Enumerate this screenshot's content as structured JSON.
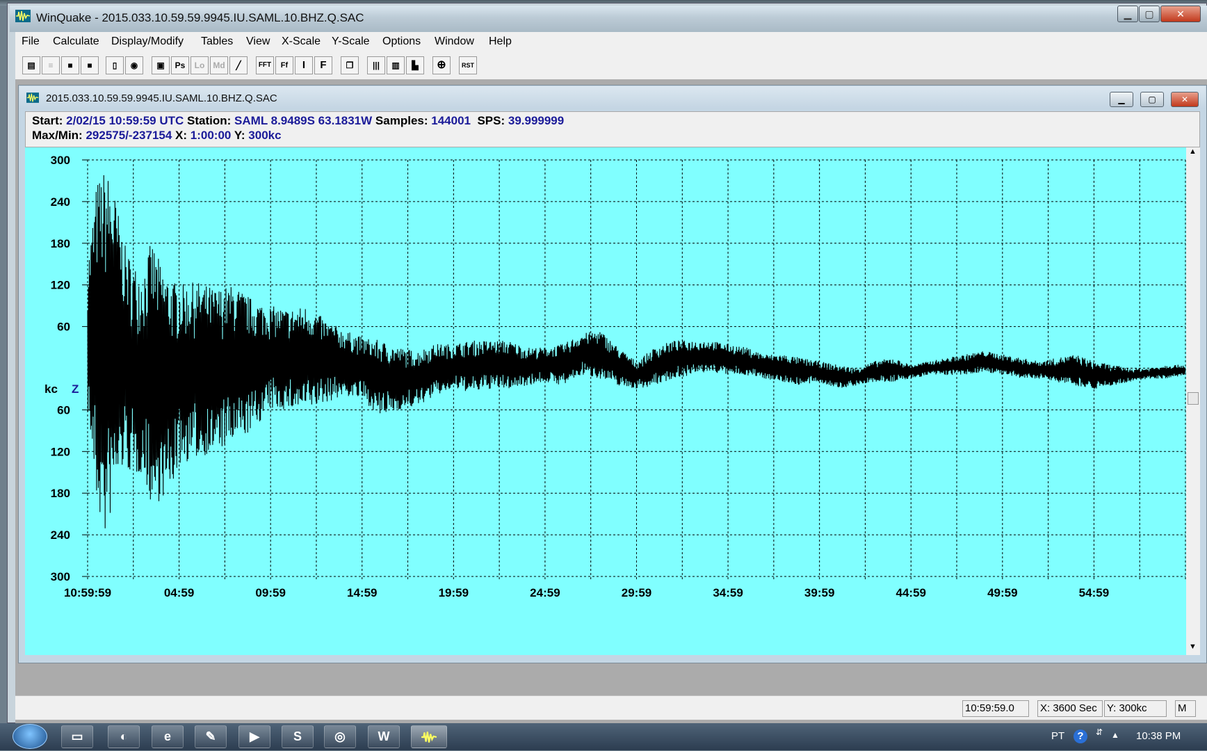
{
  "window": {
    "title": "WinQuake - 2015.033.10.59.59.9945.IU.SAML.10.BHZ.Q.SAC",
    "minimize_symbol": "▁",
    "maximize_symbol": "▢",
    "close_symbol": "✕"
  },
  "menubar": [
    "File",
    "Calculate",
    "Display/Modify",
    "Tables",
    "View",
    "X-Scale",
    "Y-Scale",
    "Options",
    "Window",
    "Help"
  ],
  "toolbar": [
    {
      "icon": "open-folder-icon",
      "label": ""
    },
    {
      "icon": "list-icon",
      "label": ""
    },
    {
      "icon": "save-icon",
      "label": ""
    },
    {
      "icon": "save-as-icon",
      "label": ""
    },
    {
      "icon": "print-preview-icon",
      "label": ""
    },
    {
      "icon": "record-icon",
      "label": ""
    },
    {
      "icon": "print-icon",
      "label": ""
    },
    {
      "icon": "ps-icon",
      "label": "Ps"
    },
    {
      "icon": "loc-icon",
      "label": "Lo"
    },
    {
      "icon": "md-icon",
      "label": "Md"
    },
    {
      "icon": "filter-icon",
      "label": "╱"
    },
    {
      "icon": "fft-icon",
      "label": "FFT"
    },
    {
      "icon": "fft-box-icon",
      "label": "Ff"
    },
    {
      "icon": "integrate-icon",
      "label": "I"
    },
    {
      "icon": "filter-f-icon",
      "label": "F"
    },
    {
      "icon": "copy-icon",
      "label": ""
    },
    {
      "icon": "zoom-in-icon",
      "label": ""
    },
    {
      "icon": "zoom-out-icon",
      "label": ""
    },
    {
      "icon": "histogram-icon",
      "label": ""
    },
    {
      "icon": "crosshair-icon",
      "label": "⊕"
    },
    {
      "icon": "reset-icon",
      "label": "RST"
    }
  ],
  "child_window": {
    "title": "2015.033.10.59.59.9945.IU.SAML.10.BHZ.Q.SAC"
  },
  "info": {
    "start_label": "Start:",
    "start_value": "2/02/15 10:59:59 UTC",
    "station_label": "Station:",
    "station_value": "SAML 8.9489S 63.1831W",
    "samples_label": "Samples:",
    "samples_value": "144001",
    "sps_label": "SPS:",
    "sps_value": "39.999999",
    "maxmin_label": "Max/Min:",
    "maxmin_value": "292575/-237154",
    "x_label": "X:",
    "x_value": "1:00:00",
    "y_label": "Y:",
    "y_value": "300kc"
  },
  "chart_data": {
    "type": "line",
    "title": "",
    "xlabel": "",
    "ylabel": "kc",
    "channel": "Z",
    "background": "#80ffff",
    "trace_color": "#000000",
    "grid": true,
    "xlim": [
      0,
      3600
    ],
    "ylim": [
      -300,
      300
    ],
    "x_tick_labels": [
      "10:59:59",
      "04:59",
      "09:59",
      "14:59",
      "19:59",
      "24:59",
      "29:59",
      "34:59",
      "39:59",
      "44:59",
      "49:59",
      "54:59"
    ],
    "y_tick_labels": [
      "300",
      "240",
      "180",
      "120",
      "60",
      "60",
      "120",
      "180",
      "240",
      "300"
    ],
    "y_tick_values": [
      300,
      240,
      180,
      120,
      60,
      -60,
      -120,
      -180,
      -240,
      -300
    ],
    "series": [
      {
        "x": [
          0,
          30,
          60,
          90,
          120,
          150,
          180,
          210,
          240,
          270,
          300,
          360,
          420,
          480,
          540,
          600,
          660,
          720,
          780,
          840,
          900,
          960,
          1020,
          1080,
          1140,
          1200,
          1260,
          1320,
          1380,
          1440,
          1500,
          1560,
          1620,
          1680,
          1740,
          1800,
          1860,
          1920,
          1980,
          2040,
          2100,
          2160,
          2220,
          2280,
          2340,
          2400,
          2460,
          2520,
          2580,
          2640,
          2700,
          2760,
          2820,
          2880,
          2940,
          3000,
          3060,
          3120,
          3180,
          3240,
          3300,
          3360,
          3420,
          3480,
          3540,
          3600
        ],
        "upper": [
          150,
          270,
          290,
          250,
          180,
          150,
          140,
          185,
          150,
          130,
          120,
          125,
          115,
          120,
          100,
          90,
          85,
          90,
          70,
          55,
          45,
          40,
          30,
          25,
          35,
          35,
          40,
          40,
          40,
          30,
          30,
          35,
          50,
          55,
          30,
          10,
          30,
          40,
          40,
          40,
          35,
          30,
          20,
          20,
          15,
          10,
          5,
          0,
          10,
          15,
          5,
          10,
          15,
          20,
          25,
          20,
          15,
          10,
          15,
          20,
          10,
          5,
          0,
          0,
          5,
          5
        ],
        "lower": [
          -60,
          -200,
          -250,
          -180,
          -140,
          -160,
          -150,
          -200,
          -190,
          -180,
          -140,
          -130,
          -120,
          -110,
          -90,
          -60,
          -60,
          -60,
          -50,
          -40,
          -45,
          -70,
          -60,
          -55,
          -40,
          -30,
          -35,
          -30,
          -30,
          -25,
          -20,
          -25,
          -10,
          -15,
          -25,
          -30,
          -25,
          -15,
          -10,
          -5,
          -10,
          -10,
          -15,
          -20,
          -25,
          -20,
          -30,
          -25,
          -20,
          -20,
          -15,
          -10,
          -10,
          -10,
          -5,
          -10,
          -15,
          -15,
          -20,
          -25,
          -30,
          -25,
          -20,
          -15,
          -15,
          -10
        ]
      }
    ]
  },
  "statusbar": {
    "time": "10:59:59.0",
    "x_scale": "X: 3600 Sec",
    "y_scale": "Y: 300kc",
    "mode": "M"
  },
  "taskbar": {
    "items": [
      "windows-start-icon",
      "file-explorer-icon",
      "ie-icon",
      "edge-icon",
      "tool-icon",
      "media-player-icon",
      "skype-icon",
      "chrome-icon",
      "word-icon",
      "winquake-icon"
    ],
    "word_label": "W",
    "skype_label": "S",
    "lang": "PT",
    "clock": "10:38 PM"
  }
}
